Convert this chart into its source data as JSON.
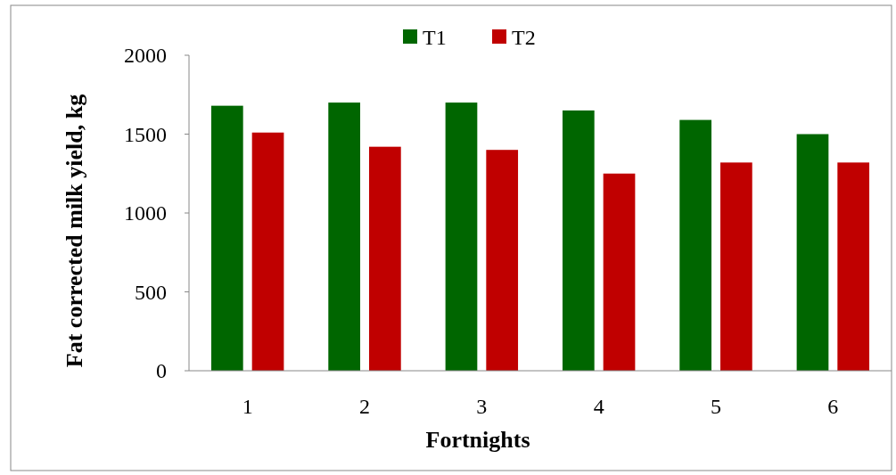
{
  "chart_data": {
    "type": "bar",
    "xlabel": "Fortnights",
    "ylabel": "Fat corrected milk yield, kg",
    "categories": [
      "1",
      "2",
      "3",
      "4",
      "5",
      "6"
    ],
    "series": [
      {
        "name": "T1",
        "color": "#006600",
        "values": [
          1680,
          1700,
          1700,
          1650,
          1590,
          1500
        ]
      },
      {
        "name": "T2",
        "color": "#c00000",
        "values": [
          1510,
          1420,
          1400,
          1250,
          1320,
          1320
        ]
      }
    ],
    "ylim": [
      0,
      2000
    ],
    "yticks": [
      0,
      500,
      1000,
      1500,
      2000
    ],
    "grid": false,
    "legend": "top"
  }
}
